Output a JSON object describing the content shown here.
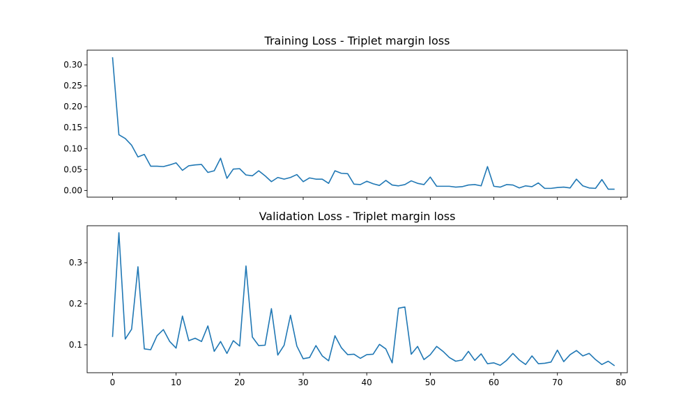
{
  "chart_data": [
    {
      "type": "line",
      "title": "Training Loss - Triplet margin loss",
      "xlabel": "",
      "ylabel": "",
      "xlim": [
        -4,
        81
      ],
      "ylim": [
        -0.016,
        0.335
      ],
      "xticks": [
        0,
        10,
        20,
        30,
        40,
        50,
        60,
        70,
        80
      ],
      "xtick_labels_visible": false,
      "yticks": [
        0.0,
        0.05,
        0.1,
        0.15,
        0.2,
        0.25,
        0.3
      ],
      "ytick_labels": [
        "0.00",
        "0.05",
        "0.10",
        "0.15",
        "0.20",
        "0.25",
        "0.30"
      ],
      "grid": false,
      "color": "#1f77b4",
      "series": [
        {
          "x": [
            0,
            1,
            2,
            3,
            4,
            5,
            6,
            7,
            8,
            9,
            10,
            11,
            12,
            13,
            14,
            15,
            16,
            17,
            18,
            19,
            20,
            21,
            22,
            23,
            24,
            25,
            26,
            27,
            28,
            29,
            30,
            31,
            32,
            33,
            34,
            35,
            36,
            37,
            38,
            39,
            40,
            41,
            42,
            43,
            44,
            45,
            46,
            47,
            48,
            49,
            50,
            51,
            52,
            53,
            54,
            55,
            56,
            57,
            58,
            59,
            60,
            61,
            62,
            63,
            64,
            65,
            66,
            67,
            68,
            69,
            70,
            71,
            72,
            73,
            74,
            75,
            76,
            77,
            78,
            79
          ],
          "values": [
            0.318,
            0.133,
            0.124,
            0.108,
            0.08,
            0.086,
            0.058,
            0.058,
            0.057,
            0.061,
            0.066,
            0.048,
            0.059,
            0.061,
            0.062,
            0.043,
            0.047,
            0.077,
            0.029,
            0.051,
            0.052,
            0.037,
            0.035,
            0.047,
            0.035,
            0.021,
            0.031,
            0.027,
            0.031,
            0.038,
            0.021,
            0.03,
            0.027,
            0.027,
            0.017,
            0.047,
            0.041,
            0.04,
            0.015,
            0.014,
            0.022,
            0.016,
            0.012,
            0.024,
            0.013,
            0.011,
            0.014,
            0.023,
            0.017,
            0.014,
            0.032,
            0.01,
            0.01,
            0.01,
            0.008,
            0.009,
            0.013,
            0.014,
            0.011,
            0.057,
            0.01,
            0.008,
            0.014,
            0.013,
            0.006,
            0.011,
            0.009,
            0.018,
            0.005,
            0.005,
            0.007,
            0.008,
            0.006,
            0.027,
            0.011,
            0.006,
            0.005,
            0.026,
            0.003,
            0.003
          ]
        }
      ]
    },
    {
      "type": "line",
      "title": "Validation Loss - Triplet margin loss",
      "xlabel": "",
      "ylabel": "",
      "xlim": [
        -4,
        81
      ],
      "ylim": [
        0.032,
        0.39
      ],
      "xticks": [
        0,
        10,
        20,
        30,
        40,
        50,
        60,
        70,
        80
      ],
      "xtick_labels": [
        "0",
        "10",
        "20",
        "30",
        "40",
        "50",
        "60",
        "70",
        "80"
      ],
      "yticks": [
        0.1,
        0.2,
        0.3
      ],
      "ytick_labels": [
        "0.1",
        "0.2",
        "0.3"
      ],
      "grid": false,
      "color": "#1f77b4",
      "series": [
        {
          "x": [
            0,
            1,
            2,
            3,
            4,
            5,
            6,
            7,
            8,
            9,
            10,
            11,
            12,
            13,
            14,
            15,
            16,
            17,
            18,
            19,
            20,
            21,
            22,
            23,
            24,
            25,
            26,
            27,
            28,
            29,
            30,
            31,
            32,
            33,
            34,
            35,
            36,
            37,
            38,
            39,
            40,
            41,
            42,
            43,
            44,
            45,
            46,
            47,
            48,
            49,
            50,
            51,
            52,
            53,
            54,
            55,
            56,
            57,
            58,
            59,
            60,
            61,
            62,
            63,
            64,
            65,
            66,
            67,
            68,
            69,
            70,
            71,
            72,
            73,
            74,
            75,
            76,
            77,
            78,
            79
          ],
          "values": [
            0.119,
            0.373,
            0.114,
            0.138,
            0.29,
            0.09,
            0.088,
            0.122,
            0.137,
            0.108,
            0.092,
            0.17,
            0.11,
            0.116,
            0.108,
            0.146,
            0.084,
            0.108,
            0.079,
            0.11,
            0.097,
            0.292,
            0.119,
            0.098,
            0.099,
            0.188,
            0.075,
            0.099,
            0.172,
            0.097,
            0.066,
            0.069,
            0.098,
            0.073,
            0.061,
            0.122,
            0.093,
            0.076,
            0.077,
            0.067,
            0.076,
            0.077,
            0.101,
            0.09,
            0.056,
            0.189,
            0.192,
            0.077,
            0.096,
            0.064,
            0.076,
            0.096,
            0.084,
            0.069,
            0.06,
            0.063,
            0.084,
            0.062,
            0.078,
            0.054,
            0.056,
            0.05,
            0.062,
            0.079,
            0.063,
            0.052,
            0.073,
            0.054,
            0.055,
            0.058,
            0.087,
            0.059,
            0.076,
            0.086,
            0.073,
            0.079,
            0.064,
            0.052,
            0.06,
            0.049
          ]
        }
      ]
    }
  ]
}
